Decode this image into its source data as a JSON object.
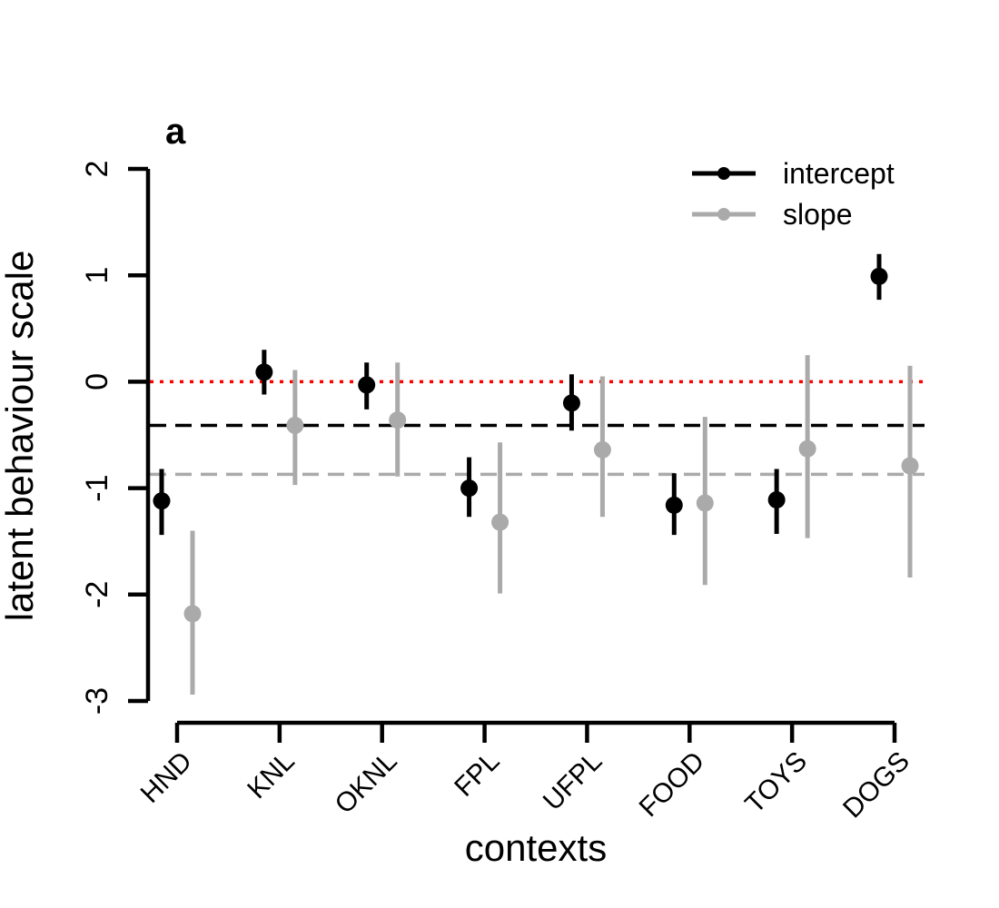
{
  "chart_data": {
    "type": "scatter",
    "panel_label": "a",
    "xlabel": "contexts",
    "ylabel": "latent behaviour scale",
    "ylim": [
      -3,
      2
    ],
    "y_ticks": [
      2,
      1,
      0,
      -1,
      -2,
      -3
    ],
    "y_tick_labels": [
      "2",
      "1",
      "0",
      "-1",
      "-2",
      "-3"
    ],
    "categories": [
      "HND",
      "KNL",
      "OKNL",
      "FPL",
      "UFPL",
      "FOOD",
      "TOYS",
      "DOGS"
    ],
    "series": [
      {
        "name": "intercept",
        "color": "#000000",
        "values": [
          -1.12,
          0.09,
          -0.03,
          -1.0,
          -0.2,
          -1.16,
          -1.11,
          0.99
        ],
        "lower": [
          -1.44,
          -0.12,
          -0.26,
          -1.27,
          -0.46,
          -1.44,
          -1.43,
          0.77
        ],
        "upper": [
          -0.82,
          0.3,
          0.18,
          -0.71,
          0.07,
          -0.86,
          -0.82,
          1.2
        ]
      },
      {
        "name": "slope",
        "color": "#aaaaaa",
        "values": [
          -2.18,
          -0.41,
          -0.36,
          -1.32,
          -0.64,
          -1.14,
          -0.63,
          -0.79
        ],
        "lower": [
          -2.94,
          -0.97,
          -0.89,
          -1.99,
          -1.27,
          -1.91,
          -1.47,
          -1.84
        ],
        "upper": [
          -1.4,
          0.11,
          0.18,
          -0.57,
          0.05,
          -0.33,
          0.25,
          0.15
        ]
      }
    ],
    "reference_lines": [
      {
        "y": 0,
        "color": "#ff0000",
        "style": "dotted"
      },
      {
        "y": -0.41,
        "color": "#000000",
        "style": "dashed"
      },
      {
        "y": -0.87,
        "color": "#aaaaaa",
        "style": "dashed"
      }
    ],
    "legend": {
      "position": "top-right",
      "entries": [
        "intercept",
        "slope"
      ]
    },
    "grid": false
  }
}
